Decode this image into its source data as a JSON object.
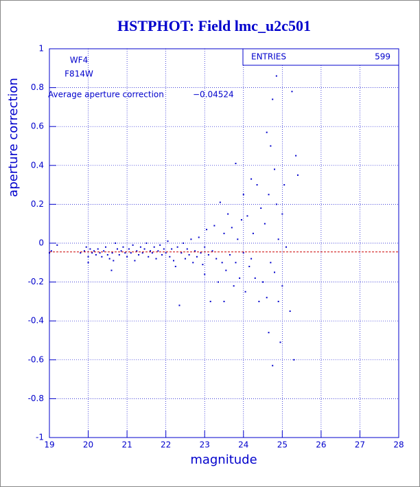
{
  "chart_data": {
    "type": "scatter",
    "title": "HSTPHOT: Field lmc_u2c501",
    "x_label": "magnitude",
    "y_label": "aperture correction",
    "annotations": [
      "WF4",
      "F814W"
    ],
    "mean_text": "Average aperture correction",
    "mean": {
      "value": -0.04524,
      "label": "−0.04524"
    },
    "stats_label": "ENTRIES",
    "stats_value": 599,
    "xlim": [
      19,
      28
    ],
    "ylim": [
      -1,
      1
    ],
    "xticks": [
      19,
      20,
      21,
      22,
      23,
      24,
      25,
      26,
      27,
      28
    ],
    "yticks": [
      -1,
      -0.8,
      -0.6,
      -0.4,
      -0.2,
      0,
      0.2,
      0.4,
      0.6,
      0.8,
      1
    ],
    "grid": true,
    "color": "#0000cc",
    "mean_color": "#cc0000",
    "x": [
      19.0,
      19.05,
      19.2,
      19.8,
      19.9,
      19.95,
      20.0,
      20.0,
      20.05,
      20.1,
      20.15,
      20.2,
      20.25,
      20.3,
      20.35,
      20.4,
      20.45,
      20.5,
      20.55,
      20.6,
      20.62,
      20.65,
      20.7,
      20.75,
      20.8,
      20.85,
      20.9,
      20.95,
      21.0,
      21.05,
      21.1,
      21.15,
      21.2,
      21.25,
      21.3,
      21.35,
      21.4,
      21.45,
      21.5,
      21.55,
      21.6,
      21.65,
      21.7,
      21.75,
      21.8,
      21.85,
      21.9,
      21.95,
      22.0,
      22.05,
      22.1,
      22.15,
      22.2,
      22.25,
      22.3,
      22.35,
      22.4,
      22.45,
      22.5,
      22.55,
      22.6,
      22.65,
      22.7,
      22.75,
      22.8,
      22.85,
      22.9,
      22.95,
      23.0,
      23.0,
      23.05,
      23.1,
      23.15,
      23.2,
      23.25,
      23.3,
      23.35,
      23.4,
      23.45,
      23.5,
      23.5,
      23.55,
      23.6,
      23.65,
      23.7,
      23.75,
      23.8,
      23.8,
      23.85,
      23.9,
      23.95,
      24.0,
      24.0,
      24.05,
      24.1,
      24.15,
      24.2,
      24.2,
      24.25,
      24.3,
      24.35,
      24.4,
      24.45,
      24.5,
      24.55,
      24.6,
      24.6,
      24.65,
      24.65,
      24.7,
      24.7,
      24.75,
      24.75,
      24.8,
      24.8,
      24.85,
      24.85,
      24.9,
      24.9,
      24.95,
      25.0,
      25.0,
      25.05,
      25.1,
      25.2,
      25.25,
      25.3,
      25.35,
      25.4
    ],
    "y": [
      -0.05,
      -0.04,
      -0.01,
      -0.05,
      -0.04,
      -0.02,
      -0.1,
      -0.07,
      -0.03,
      -0.05,
      -0.04,
      -0.06,
      -0.03,
      -0.05,
      -0.07,
      -0.04,
      -0.02,
      -0.06,
      -0.08,
      -0.14,
      -0.05,
      -0.09,
      0.0,
      -0.03,
      -0.06,
      -0.04,
      -0.02,
      -0.05,
      -0.07,
      -0.03,
      -0.05,
      -0.01,
      -0.09,
      -0.04,
      -0.06,
      -0.02,
      -0.05,
      -0.03,
      0.0,
      -0.07,
      -0.04,
      -0.05,
      -0.02,
      -0.08,
      -0.04,
      -0.01,
      -0.06,
      -0.03,
      -0.05,
      0.01,
      -0.07,
      -0.03,
      -0.09,
      -0.12,
      -0.02,
      -0.32,
      -0.05,
      0.0,
      -0.08,
      -0.03,
      -0.06,
      0.02,
      -0.1,
      -0.04,
      -0.07,
      0.03,
      -0.05,
      -0.11,
      -0.02,
      -0.16,
      0.07,
      -0.06,
      -0.3,
      -0.04,
      0.09,
      -0.08,
      -0.2,
      0.21,
      -0.1,
      0.05,
      -0.3,
      -0.14,
      0.15,
      -0.06,
      0.08,
      -0.22,
      0.41,
      -0.1,
      0.02,
      -0.18,
      0.12,
      -0.05,
      0.25,
      -0.25,
      0.14,
      -0.12,
      0.33,
      -0.08,
      0.05,
      -0.18,
      0.3,
      -0.3,
      0.18,
      -0.2,
      0.1,
      0.57,
      -0.28,
      -0.46,
      0.25,
      0.5,
      -0.1,
      0.74,
      -0.63,
      0.38,
      -0.15,
      0.86,
      0.2,
      -0.3,
      0.02,
      -0.51,
      0.15,
      -0.22,
      0.3,
      -0.02,
      -0.35,
      0.78,
      -0.6,
      0.45,
      0.35
    ]
  }
}
